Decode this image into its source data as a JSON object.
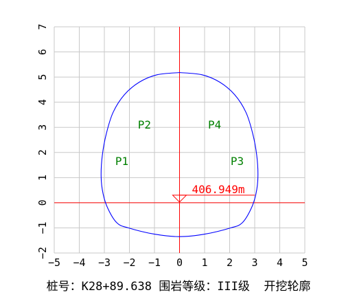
{
  "chart_data": {
    "type": "diagram",
    "xlim": [
      -5,
      5
    ],
    "ylim": [
      -2,
      7
    ],
    "x_ticks": [
      "−5",
      "−4",
      "−3",
      "−2",
      "−1",
      "0",
      "1",
      "2",
      "3",
      "4",
      "5"
    ],
    "y_ticks": [
      "−2",
      "−1",
      "0",
      "1",
      "2",
      "3",
      "4",
      "5",
      "6",
      "7"
    ],
    "grid": true,
    "axes_color": "#ff0000",
    "outline_color": "#0000ff",
    "label_color": "#008000",
    "zones": [
      {
        "label": "P1",
        "x": -2.3,
        "y": 1.5
      },
      {
        "label": "P2",
        "x": -1.4,
        "y": 2.95
      },
      {
        "label": "P4",
        "x": 1.4,
        "y": 2.95
      },
      {
        "label": "P3",
        "x": 2.3,
        "y": 1.5
      }
    ],
    "elevation_marker": {
      "label": "406.949m",
      "x": 0,
      "y": 0.3
    },
    "outline": [
      [
        0,
        5.18
      ],
      [
        0.9,
        5.09
      ],
      [
        1.6,
        4.8
      ],
      [
        2.2,
        4.3
      ],
      [
        2.65,
        3.6
      ],
      [
        2.92,
        2.75
      ],
      [
        3.08,
        1.9
      ],
      [
        3.13,
        1.05
      ],
      [
        3.05,
        0.35
      ],
      [
        2.85,
        -0.25
      ],
      [
        2.5,
        -0.8
      ],
      [
        2.05,
        -1.0
      ],
      [
        1.0,
        -1.25
      ],
      [
        0,
        -1.35
      ],
      [
        -1.0,
        -1.25
      ],
      [
        -2.05,
        -1.0
      ],
      [
        -2.5,
        -0.8
      ],
      [
        -2.85,
        -0.25
      ],
      [
        -3.05,
        0.35
      ],
      [
        -3.13,
        1.05
      ],
      [
        -3.08,
        1.9
      ],
      [
        -2.92,
        2.75
      ],
      [
        -2.65,
        3.6
      ],
      [
        -2.2,
        4.3
      ],
      [
        -1.6,
        4.8
      ],
      [
        -0.9,
        5.09
      ],
      [
        0,
        5.18
      ]
    ]
  },
  "caption": "桩号：K28+89.638 围岩等级：III级  开挖轮廓"
}
